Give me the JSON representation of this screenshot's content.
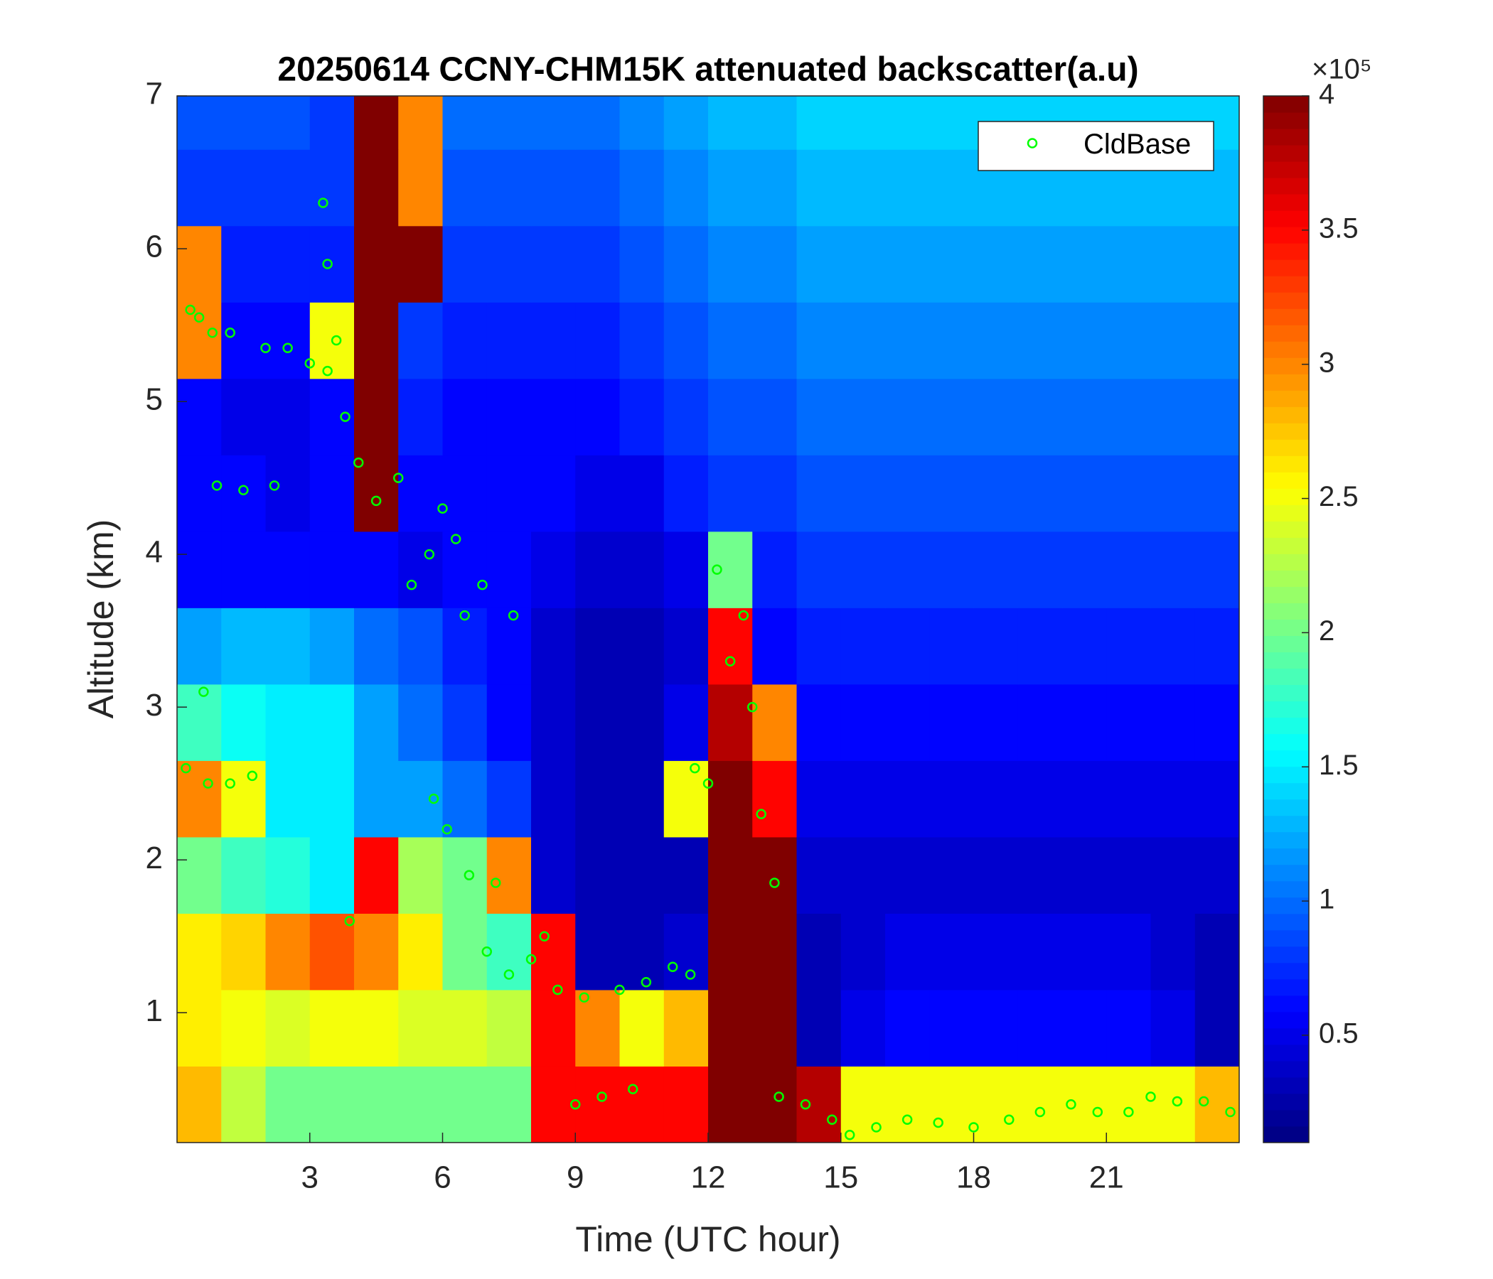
{
  "chart_data": {
    "type": "heatmap",
    "title": "20250614 CCNY-CHM15K attenuated backscatter(a.u)",
    "xlabel": "Time (UTC hour)",
    "ylabel": "Altitude (km)",
    "x": [
      0.5,
      1.5,
      2.5,
      3.5,
      4.5,
      5.5,
      6.5,
      7.5,
      8.5,
      9.5,
      10.5,
      11.5,
      12.5,
      13.5,
      14.5,
      15.5,
      16.5,
      17.5,
      18.5,
      19.5,
      20.5,
      21.5,
      22.5,
      23.5
    ],
    "y": [
      0.4,
      0.9,
      1.4,
      1.9,
      2.4,
      2.9,
      3.4,
      3.9,
      4.4,
      4.9,
      5.4,
      5.9,
      6.4,
      6.9
    ],
    "z": [
      [
        2.8,
        2.3,
        2.0,
        2.0,
        2.0,
        2.0,
        2.0,
        2.0,
        3.5,
        3.5,
        3.5,
        3.5,
        4,
        4,
        3.8,
        2.5,
        2.5,
        2.5,
        2.5,
        2.5,
        2.5,
        2.5,
        2.5,
        2.8
      ],
      [
        2.6,
        2.5,
        2.4,
        2.5,
        2.5,
        2.4,
        2.4,
        2.3,
        3.5,
        3.0,
        2.5,
        2.8,
        4,
        4,
        0.3,
        0.5,
        0.6,
        0.6,
        0.6,
        0.6,
        0.6,
        0.6,
        0.5,
        0.3
      ],
      [
        2.6,
        2.7,
        3.0,
        3.2,
        3.0,
        2.6,
        2.0,
        1.8,
        3.5,
        0.3,
        0.3,
        0.4,
        4,
        4,
        0.3,
        0.4,
        0.5,
        0.5,
        0.5,
        0.5,
        0.5,
        0.5,
        0.4,
        0.3
      ],
      [
        2.0,
        1.8,
        1.7,
        1.5,
        3.5,
        2.2,
        2.0,
        3.0,
        0.4,
        0.3,
        0.3,
        0.3,
        4,
        4,
        0.4,
        0.4,
        0.4,
        0.4,
        0.4,
        0.4,
        0.4,
        0.4,
        0.4,
        0.4
      ],
      [
        3.0,
        2.5,
        1.5,
        1.5,
        1.2,
        1.2,
        1.0,
        0.8,
        0.4,
        0.3,
        0.3,
        2.5,
        4,
        3.5,
        0.5,
        0.5,
        0.5,
        0.5,
        0.5,
        0.5,
        0.5,
        0.5,
        0.5,
        0.5
      ],
      [
        1.8,
        1.6,
        1.5,
        1.5,
        1.2,
        1.0,
        0.8,
        0.6,
        0.4,
        0.3,
        0.3,
        0.5,
        3.8,
        3.0,
        0.6,
        0.6,
        0.6,
        0.6,
        0.6,
        0.6,
        0.6,
        0.6,
        0.6,
        0.6
      ],
      [
        1.2,
        1.3,
        1.3,
        1.2,
        1.0,
        0.9,
        0.7,
        0.6,
        0.4,
        0.3,
        0.3,
        0.4,
        3.5,
        0.6,
        0.7,
        0.7,
        0.7,
        0.7,
        0.7,
        0.7,
        0.7,
        0.7,
        0.7,
        0.7
      ],
      [
        0.6,
        0.6,
        0.6,
        0.6,
        0.6,
        0.5,
        0.6,
        0.6,
        0.5,
        0.4,
        0.4,
        0.5,
        2.0,
        0.7,
        0.8,
        0.8,
        0.8,
        0.8,
        0.8,
        0.8,
        0.8,
        0.8,
        0.8,
        0.8
      ],
      [
        0.6,
        0.6,
        0.5,
        0.6,
        4,
        0.6,
        0.6,
        0.6,
        0.6,
        0.5,
        0.5,
        0.7,
        0.8,
        0.8,
        0.9,
        0.9,
        0.9,
        0.9,
        0.9,
        0.9,
        0.9,
        0.9,
        0.9,
        0.9
      ],
      [
        0.6,
        0.5,
        0.5,
        0.6,
        4,
        0.7,
        0.6,
        0.6,
        0.6,
        0.6,
        0.7,
        0.8,
        0.9,
        0.9,
        1.0,
        1.0,
        1.0,
        1.0,
        1.0,
        1.0,
        1.0,
        1.0,
        1.0,
        1.0
      ],
      [
        3,
        0.6,
        0.6,
        2.5,
        4,
        0.8,
        0.7,
        0.7,
        0.7,
        0.7,
        0.8,
        0.9,
        1.0,
        1.0,
        1.1,
        1.1,
        1.1,
        1.1,
        1.1,
        1.1,
        1.1,
        1.1,
        1.1,
        1.1
      ],
      [
        3,
        0.7,
        0.7,
        0.7,
        4,
        4,
        0.8,
        0.8,
        0.8,
        0.8,
        0.9,
        1.0,
        1.1,
        1.1,
        1.2,
        1.2,
        1.2,
        1.2,
        1.2,
        1.2,
        1.2,
        1.2,
        1.2,
        1.2
      ],
      [
        0.8,
        0.8,
        0.8,
        0.8,
        4,
        3,
        0.9,
        0.9,
        0.9,
        0.9,
        1.0,
        1.1,
        1.2,
        1.2,
        1.3,
        1.3,
        1.3,
        1.3,
        1.3,
        1.3,
        1.3,
        1.3,
        1.3,
        1.3
      ],
      [
        0.9,
        0.9,
        0.9,
        0.8,
        4,
        3,
        1.0,
        1.0,
        1.0,
        1.0,
        1.1,
        1.2,
        1.3,
        1.3,
        1.4,
        1.4,
        1.4,
        1.4,
        1.4,
        1.4,
        1.4,
        1.4,
        1.4,
        1.4
      ]
    ],
    "xlim": [
      0,
      24
    ],
    "ylim": [
      0.15,
      7
    ],
    "xticks": [
      3,
      6,
      9,
      12,
      15,
      18,
      21
    ],
    "yticks": [
      1,
      2,
      3,
      4,
      5,
      6,
      7
    ],
    "colormap": "jet",
    "clim": [
      0.1,
      4
    ],
    "cticks": [
      0.5,
      1,
      1.5,
      2,
      2.5,
      3,
      3.5,
      4
    ],
    "colorbar_label": "×10⁵",
    "legend": "upper right",
    "series": [
      {
        "name": "CldBase",
        "type": "scatter",
        "color": "#00ff00",
        "x": [
          0.2,
          0.3,
          0.5,
          0.8,
          1.2,
          0.9,
          1.5,
          2.2,
          0.7,
          1.2,
          1.7,
          0.6,
          2.0,
          2.5,
          3.0,
          3.4,
          3.3,
          3.4,
          3.6,
          3.8,
          4.1,
          4.5,
          5.0,
          5.3,
          5.7,
          6.0,
          6.3,
          6.5,
          6.9,
          7.6,
          3.9,
          5.8,
          6.1,
          6.6,
          7.2,
          7.0,
          7.5,
          8.0,
          8.3,
          8.6,
          9.2,
          10.0,
          10.6,
          11.2,
          11.6,
          9.0,
          9.6,
          10.3,
          11.7,
          12.0,
          12.2,
          12.5,
          12.8,
          13.0,
          13.2,
          13.5,
          13.6,
          14.2,
          14.8,
          15.2,
          15.8,
          16.5,
          17.2,
          18.0,
          18.8,
          19.5,
          20.2,
          20.8,
          21.5,
          22.0,
          22.6,
          23.2,
          23.8
        ],
        "values": [
          2.6,
          5.6,
          5.55,
          5.45,
          5.45,
          4.45,
          4.42,
          4.45,
          2.5,
          2.5,
          2.55,
          3.1,
          5.35,
          5.35,
          5.25,
          5.2,
          6.3,
          5.9,
          5.4,
          4.9,
          4.6,
          4.35,
          4.5,
          3.8,
          4.0,
          4.3,
          4.1,
          3.6,
          3.8,
          3.6,
          1.6,
          2.4,
          2.2,
          1.9,
          1.85,
          1.4,
          1.25,
          1.35,
          1.5,
          1.15,
          1.1,
          1.15,
          1.2,
          1.3,
          1.25,
          0.4,
          0.45,
          0.5,
          2.6,
          2.5,
          3.9,
          3.3,
          3.6,
          3.0,
          2.3,
          1.85,
          0.45,
          0.4,
          0.3,
          0.2,
          0.25,
          0.3,
          0.28,
          0.25,
          0.3,
          0.35,
          0.4,
          0.35,
          0.35,
          0.45,
          0.42,
          0.42,
          0.35
        ]
      }
    ]
  }
}
